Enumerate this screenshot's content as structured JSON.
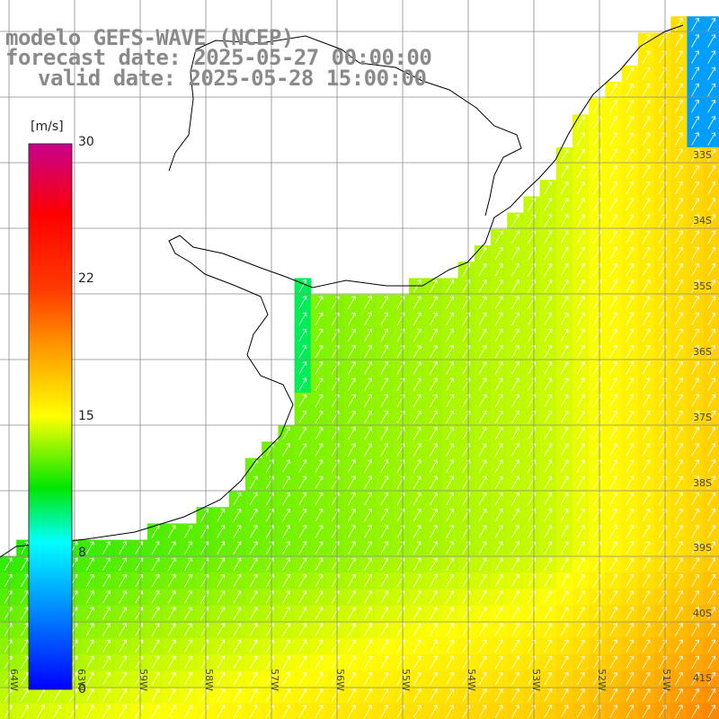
{
  "header": {
    "line1": "modelo GEFS-WAVE (NCEP)",
    "line2": "forecast date: 2025-05-27 00:00:00",
    "line3": "valid date: 2025-05-28 15:00:00"
  },
  "colorbar": {
    "unit": "[m/s]",
    "ticks": [
      "30",
      "22",
      "15",
      "8",
      "0"
    ],
    "values": [
      30,
      22,
      15,
      8,
      0
    ]
  },
  "lat_labels": [
    "33S",
    "34S",
    "35S",
    "36S",
    "37S",
    "38S",
    "39S",
    "40S",
    "41S"
  ],
  "lon_labels": [
    "64W",
    "63W",
    "59W",
    "58W",
    "57W",
    "56W",
    "55W",
    "54W",
    "53W",
    "52W",
    "51W"
  ],
  "colors": {
    "land": "#ffffff",
    "grid": "#8c8c8c",
    "coast": "#000000",
    "arrows": "#ffffff"
  }
}
